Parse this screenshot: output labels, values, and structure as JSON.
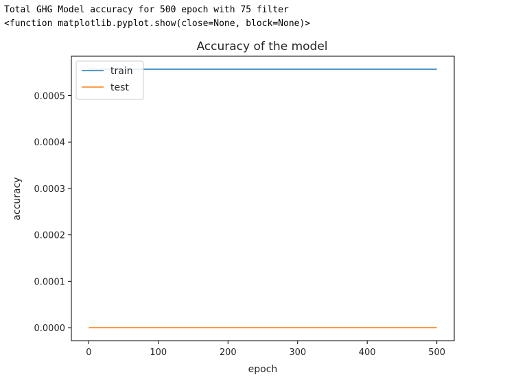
{
  "output": {
    "line1": "Total GHG Model accuracy for 500 epoch with 75 filter",
    "line2": "<function matplotlib.pyplot.show(close=None, block=None)>"
  },
  "chart_data": {
    "type": "line",
    "title": "Accuracy of the model",
    "xlabel": "epoch",
    "ylabel": "accuracy",
    "xlim": [
      -25,
      525
    ],
    "ylim": [
      -2.8e-05,
      0.000585
    ],
    "xticks": [
      0,
      100,
      200,
      300,
      400,
      500
    ],
    "yticks": [
      0.0,
      0.0001,
      0.0002,
      0.0003,
      0.0004,
      0.0005
    ],
    "ytick_labels": [
      "0.0000",
      "0.0001",
      "0.0002",
      "0.0003",
      "0.0004",
      "0.0005"
    ],
    "grid": false,
    "legend_position": "upper left",
    "series": [
      {
        "name": "train",
        "color": "#1f77b4",
        "x": [
          0,
          500
        ],
        "y": [
          0.000557,
          0.000557
        ]
      },
      {
        "name": "test",
        "color": "#ff7f0e",
        "x": [
          0,
          500
        ],
        "y": [
          0.0,
          0.0
        ]
      }
    ]
  }
}
